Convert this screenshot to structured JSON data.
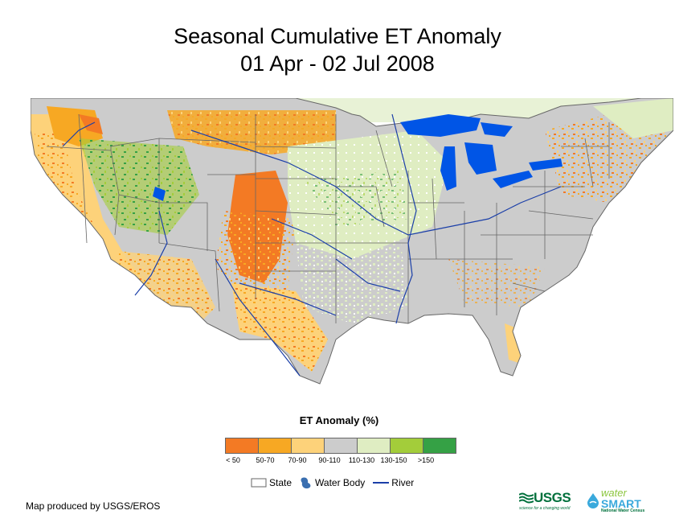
{
  "title": {
    "line1": "Seasonal Cumulative ET Anomaly",
    "line2": "01 Apr - 02 Jul 2008"
  },
  "legend": {
    "title": "ET Anomaly (%)",
    "classes": [
      {
        "label": "< 50",
        "color": "#f37a24"
      },
      {
        "label": "50-70",
        "color": "#f7a823"
      },
      {
        "label": "70-90",
        "color": "#fdd27a"
      },
      {
        "label": "90-110",
        "color": "#cccccc"
      },
      {
        "label": "110-130",
        "color": "#dfedc2"
      },
      {
        "label": "130-150",
        "color": "#a3cd3a"
      },
      {
        "label": ">150",
        "color": "#35a145"
      }
    ],
    "symbols": {
      "state": "State",
      "water_body": "Water Body",
      "river": "River"
    }
  },
  "credit": "Map produced by USGS/EROS",
  "logos": {
    "usgs": "USGS",
    "usgs_tagline": "science for a changing world",
    "water": "water",
    "smart": "SMART",
    "census": "National Water Census"
  },
  "colors": {
    "water": "#0055e6",
    "river": "#1b3fa8",
    "state_border": "#666666"
  }
}
